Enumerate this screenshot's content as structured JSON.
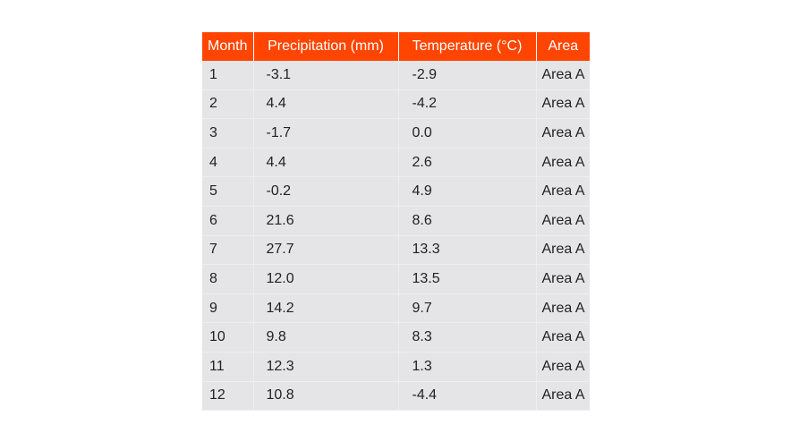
{
  "colors": {
    "header_background": "#ff4500",
    "header_text": "#ffffff",
    "cell_background": "#e5e5e8",
    "cell_text": "#222222"
  },
  "chart_data": {
    "type": "table",
    "columns": [
      "Month",
      "Precipitation (mm)",
      "Temperature (°C)",
      "Area"
    ],
    "rows": [
      [
        "1",
        "-3.1",
        "-2.9",
        "Area A"
      ],
      [
        "2",
        "4.4",
        "-4.2",
        "Area A"
      ],
      [
        "3",
        "-1.7",
        "0.0",
        "Area A"
      ],
      [
        "4",
        "4.4",
        "2.6",
        "Area A"
      ],
      [
        "5",
        "-0.2",
        "4.9",
        "Area A"
      ],
      [
        "6",
        "21.6",
        "8.6",
        "Area A"
      ],
      [
        "7",
        "27.7",
        "13.3",
        "Area A"
      ],
      [
        "8",
        "12.0",
        "13.5",
        "Area A"
      ],
      [
        "9",
        "14.2",
        "9.7",
        "Area A"
      ],
      [
        "10",
        "9.8",
        "8.3",
        "Area A"
      ],
      [
        "11",
        "12.3",
        "1.3",
        "Area A"
      ],
      [
        "12",
        "10.8",
        "-4.4",
        "Area A"
      ]
    ]
  }
}
